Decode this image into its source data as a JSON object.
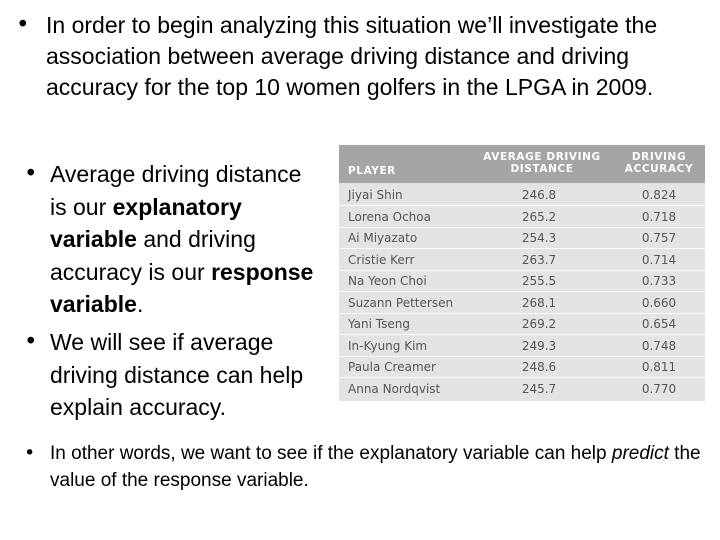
{
  "bullets": {
    "b1": "In order to begin analyzing this situation we’ll investigate the association between average driving distance and driving accuracy for the top 10 women golfers in the LPGA in 2009.",
    "b2": {
      "t1": "Average driving distance is our ",
      "t2": "explanatory variable",
      "t3": " and driving accuracy is our ",
      "t4": "response variable",
      "t5": "."
    },
    "b3": "We will see if average driving distance can help explain accuracy.",
    "b4": {
      "t1": "In other words, we want to see if the explanatory variable can help ",
      "t2": "predict",
      "t3": " the value of the response variable."
    },
    "marker": "•"
  },
  "table": {
    "headers": {
      "player": "PLAYER",
      "distance_l1": "AVERAGE DRIVING",
      "distance_l2": "DISTANCE",
      "accuracy_l1": "DRIVING",
      "accuracy_l2": "ACCURACY"
    },
    "rows": [
      {
        "player": "Jiyai Shin",
        "distance": "246.8",
        "accuracy": "0.824"
      },
      {
        "player": "Lorena Ochoa",
        "distance": "265.2",
        "accuracy": "0.718"
      },
      {
        "player": "Ai Miyazato",
        "distance": "254.3",
        "accuracy": "0.757"
      },
      {
        "player": "Cristie Kerr",
        "distance": "263.7",
        "accuracy": "0.714"
      },
      {
        "player": "Na Yeon Choi",
        "distance": "255.5",
        "accuracy": "0.733"
      },
      {
        "player": "Suzann Pettersen",
        "distance": "268.1",
        "accuracy": "0.660"
      },
      {
        "player": "Yani Tseng",
        "distance": "269.2",
        "accuracy": "0.654"
      },
      {
        "player": "In-Kyung Kim",
        "distance": "249.3",
        "accuracy": "0.748"
      },
      {
        "player": "Paula Creamer",
        "distance": "248.6",
        "accuracy": "0.811"
      },
      {
        "player": "Anna Nordqvist",
        "distance": "245.7",
        "accuracy": "0.770"
      }
    ]
  },
  "colors": {
    "table_bg": "#e3e3e2",
    "header_bg": "#a4a5a6",
    "cell_text": "#555555"
  }
}
